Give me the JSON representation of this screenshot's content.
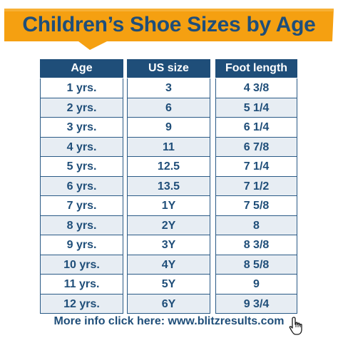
{
  "title": "Children’s Shoe Sizes by Age",
  "columns": {
    "age": "Age",
    "us_size": "US size",
    "foot_length": "Foot length"
  },
  "rows": [
    {
      "age": "1 yrs.",
      "us_size": "3",
      "foot_length": "4 3/8"
    },
    {
      "age": "2 yrs.",
      "us_size": "6",
      "foot_length": "5 1/4"
    },
    {
      "age": "3 yrs.",
      "us_size": "9",
      "foot_length": "6 1/4"
    },
    {
      "age": "4 yrs.",
      "us_size": "11",
      "foot_length": "6 7/8"
    },
    {
      "age": "5 yrs.",
      "us_size": "12.5",
      "foot_length": "7 1/4"
    },
    {
      "age": "6 yrs.",
      "us_size": "13.5",
      "foot_length": "7 1/2"
    },
    {
      "age": "7 yrs.",
      "us_size": "1Y",
      "foot_length": "7 5/8"
    },
    {
      "age": "8 yrs.",
      "us_size": "2Y",
      "foot_length": "8"
    },
    {
      "age": "9 yrs.",
      "us_size": "3Y",
      "foot_length": "8 3/8"
    },
    {
      "age": "10 yrs.",
      "us_size": "4Y",
      "foot_length": "8 5/8"
    },
    {
      "age": "11 yrs.",
      "us_size": "5Y",
      "foot_length": "9"
    },
    {
      "age": "12 yrs.",
      "us_size": "6Y",
      "foot_length": "9 3/4"
    }
  ],
  "footer": "More info click here: www.blitzresults.com",
  "icons": {
    "cursor": "pointer-hand-icon"
  },
  "colors": {
    "banner": "#f5a011",
    "primary": "#1f4e79",
    "row_alt": "#e7edf3"
  }
}
